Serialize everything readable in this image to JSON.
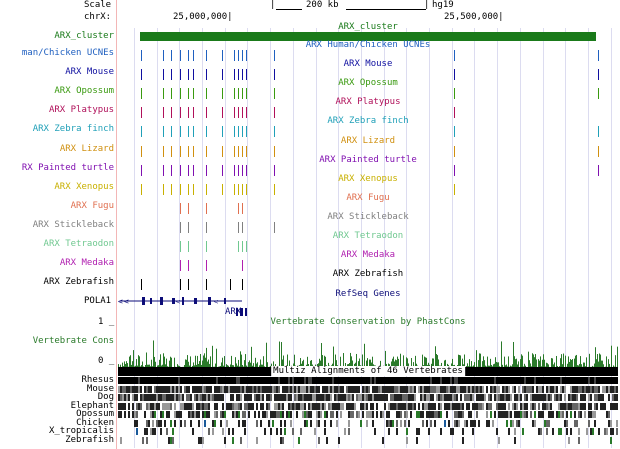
{
  "header": {
    "scale_label": "Scale",
    "scale_value": "200 kb",
    "assembly": "hg19",
    "chrom_label": "chrX:",
    "pos_left": "25,000,000|",
    "pos_right": "25,500,000|"
  },
  "cluster": {
    "label": "ARX_cluster",
    "bar_label": "ARX_cluster",
    "color": "#1a7a1a"
  },
  "tracks": [
    {
      "label": "man/Chicken UCNEs",
      "title": "ARX Human/Chicken UCNEs",
      "color": "#2060c0",
      "ticks": [
        141,
        163,
        171,
        180,
        188,
        193,
        206,
        222,
        234,
        238,
        242,
        246,
        274,
        454,
        598
      ]
    },
    {
      "label": "ARX Mouse",
      "title": "ARX Mouse",
      "color": "#1010a0",
      "ticks": [
        141,
        163,
        171,
        180,
        188,
        193,
        206,
        222,
        234,
        238,
        242,
        246,
        274,
        454,
        598
      ]
    },
    {
      "label": "ARX Opossum",
      "title": "ARX Opossum",
      "color": "#3a9a10",
      "ticks": [
        141,
        163,
        171,
        180,
        188,
        193,
        206,
        222,
        234,
        238,
        242,
        246,
        274,
        454,
        598
      ]
    },
    {
      "label": "ARX Platypus",
      "title": "ARX Platypus",
      "color": "#b0105a",
      "ticks": [
        141,
        163,
        171,
        180,
        188,
        193,
        206,
        222,
        234,
        238,
        242,
        246,
        274,
        454
      ]
    },
    {
      "label": "ARX Zebra finch",
      "title": "ARX Zebra finch",
      "color": "#20a0b8",
      "ticks": [
        141,
        163,
        171,
        180,
        188,
        193,
        206,
        222,
        234,
        238,
        242,
        246,
        274,
        454,
        598
      ]
    },
    {
      "label": "ARX Lizard",
      "title": "ARX Lizard",
      "color": "#d09010",
      "ticks": [
        141,
        163,
        171,
        180,
        188,
        193,
        206,
        222,
        234,
        238,
        242,
        246,
        274,
        454,
        598
      ]
    },
    {
      "label": "RX Painted turtle",
      "title": "ARX Painted turtle",
      "color": "#8010b0",
      "ticks": [
        141,
        163,
        171,
        180,
        188,
        193,
        206,
        222,
        234,
        238,
        242,
        246,
        274,
        454,
        598
      ]
    },
    {
      "label": "ARX Xenopus",
      "title": "ARX Xenopus",
      "color": "#c8b000",
      "ticks": [
        141,
        163,
        171,
        180,
        188,
        193,
        206,
        222,
        234,
        238,
        242,
        246,
        274,
        454
      ]
    },
    {
      "label": "ARX Fugu",
      "title": "ARX Fugu",
      "color": "#e07050",
      "ticks": [
        180,
        188,
        206,
        238,
        242
      ]
    },
    {
      "label": "ARX Stickleback",
      "title": "ARX Stickleback",
      "color": "#808080",
      "ticks": [
        180,
        188,
        206,
        238,
        242,
        274
      ]
    },
    {
      "label": "ARX Tetraodon",
      "title": "ARX Tetraodon",
      "color": "#70c890",
      "ticks": [
        180,
        188,
        206,
        238,
        242,
        246
      ]
    },
    {
      "label": "ARX Medaka",
      "title": "ARX Medaka",
      "color": "#b020b0",
      "ticks": [
        180,
        188,
        206,
        242
      ]
    },
    {
      "label": "ARX Zebrafish",
      "title": "ARX Zebrafish",
      "color": "#000000",
      "ticks": [
        141,
        180,
        188,
        206,
        230,
        242
      ]
    }
  ],
  "refseq": {
    "title": "RefSeq Genes",
    "gene1": "POLA1",
    "gene2": "ARX"
  },
  "conservation": {
    "label": "Vertebrate Cons",
    "title": "Vertebrate Conservation by PhastCons",
    "max": "1 _",
    "min": "0 _",
    "color": "#2a7a2a"
  },
  "multiz": {
    "title": "Multiz Alignments of 46 Vertebrates",
    "species": [
      "Rhesus",
      "Mouse",
      "Dog",
      "Elephant",
      "Opossum",
      "Chicken",
      "X_tropicalis",
      "Zebrafish"
    ]
  }
}
